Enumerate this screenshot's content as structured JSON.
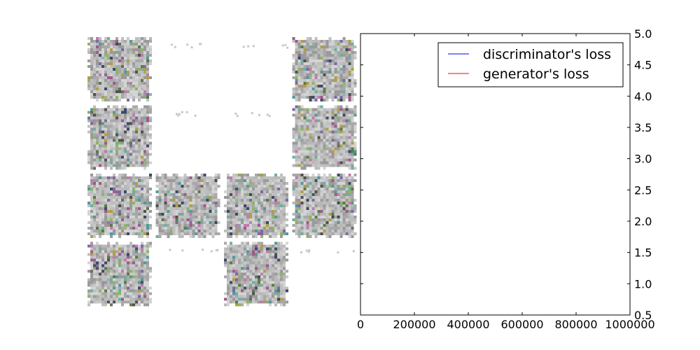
{
  "figure": {
    "panels": [
      {
        "type": "image-grid",
        "rows": 4,
        "cols": 4,
        "tiles": [
          "noise",
          "blank",
          "blank",
          "noise",
          "noise",
          "blank",
          "blank",
          "noise",
          "noise",
          "noise",
          "noise",
          "noise",
          "noise",
          "blank",
          "noise",
          "blank"
        ]
      }
    ]
  },
  "chart_data": {
    "type": "line",
    "title": "",
    "xlabel": "",
    "ylabel": "",
    "xlim": [
      0,
      1000000
    ],
    "ylim": [
      0.5,
      5.0
    ],
    "x_ticks": [
      0,
      200000,
      400000,
      600000,
      800000,
      1000000
    ],
    "x_tick_labels": [
      "0",
      "200000",
      "400000",
      "600000",
      "800000",
      "1000000"
    ],
    "y_ticks": [
      0.5,
      1.0,
      1.5,
      2.0,
      2.5,
      3.0,
      3.5,
      4.0,
      4.5,
      5.0
    ],
    "y_tick_labels": [
      "0.5",
      "1.0",
      "1.5",
      "2.0",
      "2.5",
      "3.0",
      "3.5",
      "4.0",
      "4.5",
      "5.0"
    ],
    "y_axis_side": "right",
    "grid": false,
    "legend": {
      "placement": "top-right"
    },
    "series": [
      {
        "name": "discriminator's loss",
        "color": "#0000ff",
        "x": [],
        "y": []
      },
      {
        "name": "generator's loss",
        "color": "#ff0000",
        "x": [],
        "y": []
      }
    ]
  }
}
